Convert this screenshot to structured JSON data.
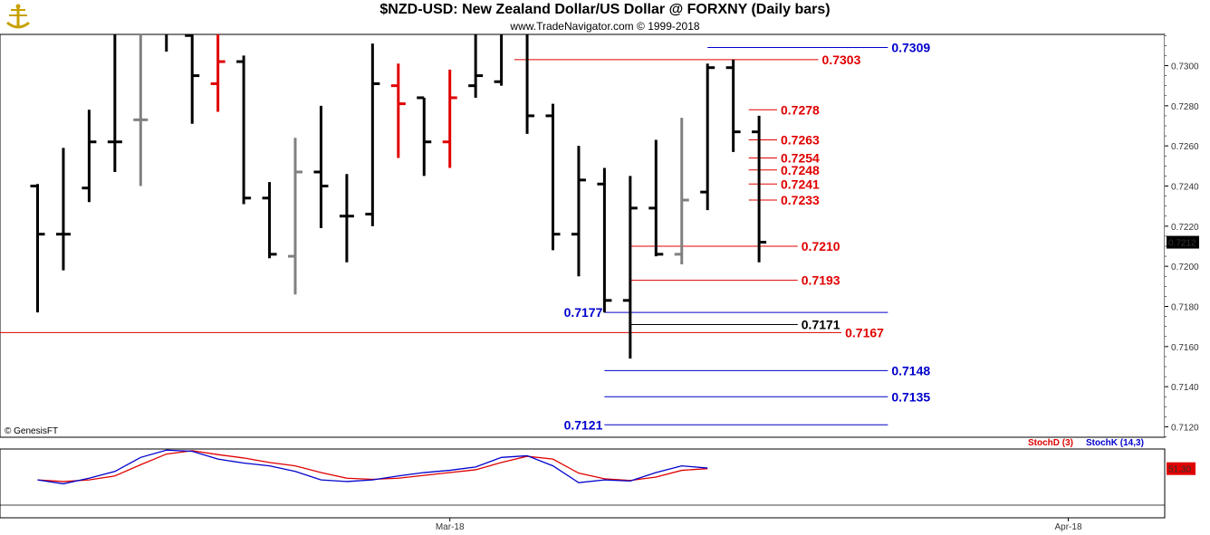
{
  "header": {
    "title": "$NZD-USD:  New Zealand Dollar/US Dollar @ FORXNY  (Daily bars)",
    "subtitle": "www.TradeNavigator.com © 1999-2018"
  },
  "copyright": "© GenesisFT",
  "colors": {
    "up": "#000000",
    "down": "#e00000",
    "flat": "#808080",
    "blue": "#0000cc",
    "red": "#e00000",
    "stochK": "#0000cc",
    "stochD": "#e00000"
  },
  "chart_data": {
    "type": "ohlc",
    "title": "$NZD-USD:  New Zealand Dollar/US Dollar @ FORXNY  (Daily bars)",
    "price_axis": {
      "min": 0.711,
      "max": 0.7325,
      "ticks": [
        "0.7120",
        "0.7140",
        "0.7160",
        "0.7180",
        "0.7200",
        "0.7220",
        "0.7240",
        "0.7260",
        "0.7280",
        "0.7300"
      ]
    },
    "x_labels": [
      {
        "label": "Mar-18",
        "bar": 16
      },
      {
        "label": "Apr-18",
        "bar": 40
      }
    ],
    "last_price": "0.7212",
    "bars": [
      {
        "o": 0.724,
        "h": 0.7241,
        "l": 0.7177,
        "c": 0.7216,
        "col": "up"
      },
      {
        "o": 0.7216,
        "h": 0.7259,
        "l": 0.7198,
        "c": 0.7216,
        "col": "up"
      },
      {
        "o": 0.7239,
        "h": 0.7278,
        "l": 0.7232,
        "c": 0.7262,
        "col": "up"
      },
      {
        "o": 0.7262,
        "h": 0.7346,
        "l": 0.7247,
        "c": 0.7262,
        "col": "up"
      },
      {
        "o": 0.7273,
        "h": 0.7325,
        "l": 0.724,
        "c": 0.7273,
        "col": "flat"
      },
      {
        "o": 0.7335,
        "h": 0.734,
        "l": 0.7307,
        "c": 0.732,
        "col": "up"
      },
      {
        "o": 0.7315,
        "h": 0.735,
        "l": 0.7271,
        "c": 0.7295,
        "col": "up"
      },
      {
        "o": 0.7291,
        "h": 0.7325,
        "l": 0.7277,
        "c": 0.7302,
        "col": "down"
      },
      {
        "o": 0.7302,
        "h": 0.7305,
        "l": 0.7231,
        "c": 0.7234,
        "col": "up"
      },
      {
        "o": 0.7234,
        "h": 0.7242,
        "l": 0.7204,
        "c": 0.7206,
        "col": "up"
      },
      {
        "o": 0.7205,
        "h": 0.7264,
        "l": 0.7186,
        "c": 0.7247,
        "col": "flat"
      },
      {
        "o": 0.7247,
        "h": 0.728,
        "l": 0.7219,
        "c": 0.724,
        "col": "up"
      },
      {
        "o": 0.7225,
        "h": 0.7246,
        "l": 0.7202,
        "c": 0.7225,
        "col": "up"
      },
      {
        "o": 0.7226,
        "h": 0.7311,
        "l": 0.722,
        "c": 0.7291,
        "col": "up"
      },
      {
        "o": 0.729,
        "h": 0.7301,
        "l": 0.7254,
        "c": 0.7281,
        "col": "down"
      },
      {
        "o": 0.7284,
        "h": 0.7284,
        "l": 0.7245,
        "c": 0.7262,
        "col": "up"
      },
      {
        "o": 0.7262,
        "h": 0.7298,
        "l": 0.7249,
        "c": 0.7284,
        "col": "down"
      },
      {
        "o": 0.729,
        "h": 0.734,
        "l": 0.7284,
        "c": 0.7295,
        "col": "up"
      },
      {
        "o": 0.7292,
        "h": 0.7338,
        "l": 0.729,
        "c": 0.732,
        "col": "up"
      },
      {
        "o": 0.7318,
        "h": 0.7325,
        "l": 0.7266,
        "c": 0.7275,
        "col": "up"
      },
      {
        "o": 0.7275,
        "h": 0.7281,
        "l": 0.7208,
        "c": 0.7216,
        "col": "up"
      },
      {
        "o": 0.7216,
        "h": 0.726,
        "l": 0.7195,
        "c": 0.7243,
        "col": "up"
      },
      {
        "o": 0.7241,
        "h": 0.7249,
        "l": 0.7177,
        "c": 0.7183,
        "col": "up"
      },
      {
        "o": 0.7183,
        "h": 0.7245,
        "l": 0.7154,
        "c": 0.7229,
        "col": "up"
      },
      {
        "o": 0.7229,
        "h": 0.7263,
        "l": 0.7205,
        "c": 0.7206,
        "col": "up"
      },
      {
        "o": 0.7206,
        "h": 0.7274,
        "l": 0.7201,
        "c": 0.7233,
        "col": "flat"
      },
      {
        "o": 0.7237,
        "h": 0.7301,
        "l": 0.7228,
        "c": 0.7299,
        "col": "up"
      },
      {
        "o": 0.7299,
        "h": 0.7303,
        "l": 0.7257,
        "c": 0.7267,
        "col": "up"
      },
      {
        "o": 0.7267,
        "h": 0.7275,
        "l": 0.7202,
        "c": 0.7212,
        "col": "up"
      }
    ],
    "levels": [
      {
        "label": "0.7309",
        "value": 0.7309,
        "color": "blue",
        "x1b": 26.0,
        "x2b": 33.0,
        "lab": "right"
      },
      {
        "label": "0.7303",
        "value": 0.7303,
        "color": "red",
        "x1b": 18.5,
        "x2b": 30.3,
        "lab": "right"
      },
      {
        "label": "0.7278",
        "value": 0.7278,
        "color": "red",
        "x1b": 27.6,
        "x2b": 28.7,
        "lab": "right"
      },
      {
        "label": "0.7263",
        "value": 0.7263,
        "color": "red",
        "x1b": 27.6,
        "x2b": 28.7,
        "lab": "right"
      },
      {
        "label": "0.7254",
        "value": 0.7254,
        "color": "red",
        "x1b": 27.6,
        "x2b": 28.7,
        "lab": "right"
      },
      {
        "label": "0.7248",
        "value": 0.7248,
        "color": "red",
        "x1b": 27.6,
        "x2b": 28.7,
        "lab": "right"
      },
      {
        "label": "0.7241",
        "value": 0.7241,
        "color": "red",
        "x1b": 27.6,
        "x2b": 28.7,
        "lab": "right"
      },
      {
        "label": "0.7233",
        "value": 0.7233,
        "color": "red",
        "x1b": 27.6,
        "x2b": 28.7,
        "lab": "right"
      },
      {
        "label": "0.7210",
        "value": 0.721,
        "color": "red",
        "x1b": 23.0,
        "x2b": 29.5,
        "lab": "right"
      },
      {
        "label": "0.7193",
        "value": 0.7193,
        "color": "red",
        "x1b": 23.0,
        "x2b": 29.5,
        "lab": "right"
      },
      {
        "label": "0.7177",
        "value": 0.7177,
        "color": "blue",
        "x1b": 22.0,
        "x2b": 33.0,
        "lab": "left"
      },
      {
        "label": "0.7171",
        "value": 0.7171,
        "color": "black",
        "x1b": 23.0,
        "x2b": 29.5,
        "lab": "right"
      },
      {
        "label": "0.7167",
        "value": 0.7167,
        "color": "red",
        "x1b": -2.0,
        "x2b": 31.2,
        "lab": "right"
      },
      {
        "label": "0.7148",
        "value": 0.7148,
        "color": "blue",
        "x1b": 22.0,
        "x2b": 33.0,
        "lab": "right"
      },
      {
        "label": "0.7135",
        "value": 0.7135,
        "color": "blue",
        "x1b": 22.0,
        "x2b": 33.0,
        "lab": "right"
      },
      {
        "label": "0.7121",
        "value": 0.7121,
        "color": "blue",
        "x1b": 22.0,
        "x2b": 33.0,
        "lab": "left"
      }
    ],
    "stochastic": {
      "labels": {
        "d": "StochD (3)",
        "k": "StochK (14,3)"
      },
      "value_label": "51.30",
      "k": [
        45,
        38,
        48,
        60,
        85,
        98,
        96,
        82,
        75,
        70,
        60,
        45,
        42,
        45,
        52,
        58,
        62,
        68,
        85,
        88,
        70,
        40,
        45,
        43,
        58,
        70,
        66
      ],
      "d": [
        45,
        42,
        45,
        52,
        72,
        91,
        97,
        90,
        84,
        76,
        70,
        58,
        48,
        46,
        48,
        53,
        58,
        63,
        76,
        87,
        82,
        57,
        47,
        44,
        50,
        62,
        65
      ]
    }
  }
}
